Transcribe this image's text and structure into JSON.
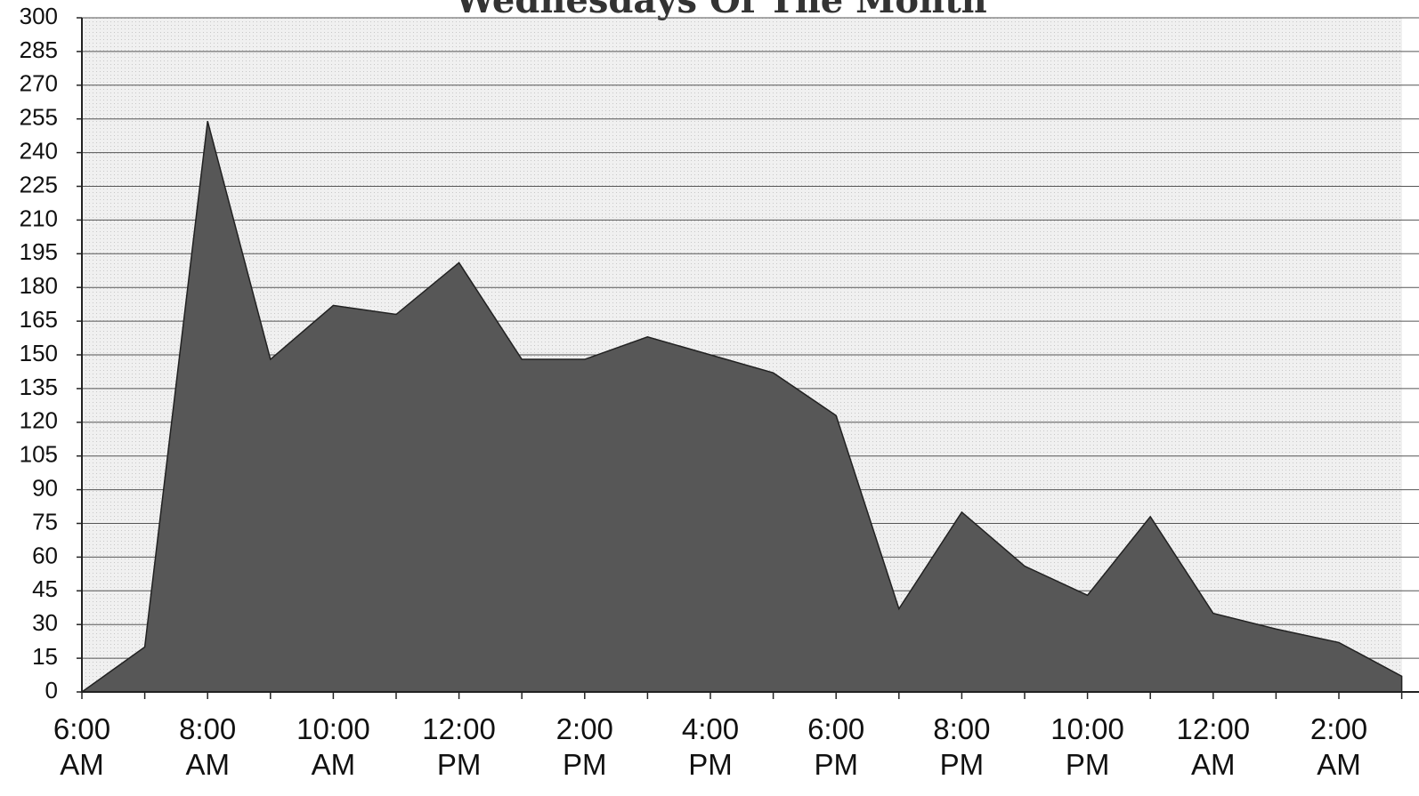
{
  "chart_data": {
    "type": "area",
    "title": "Wednesdays Of The Month",
    "categories": [
      "6:00 AM",
      null,
      "8:00 AM",
      null,
      "10:00 AM",
      null,
      "12:00 PM",
      null,
      "2:00 PM",
      null,
      "4:00 PM",
      null,
      "6:00 PM",
      null,
      "8:00 PM",
      null,
      "10:00 PM",
      null,
      "12:00 AM",
      null,
      "2:00 AM",
      null
    ],
    "values": [
      0,
      20,
      254,
      148,
      172,
      168,
      191,
      148,
      148,
      158,
      150,
      142,
      123,
      37,
      80,
      56,
      43,
      78,
      35,
      28,
      22,
      7
    ],
    "color": "#575757",
    "ylim": [
      0,
      300
    ],
    "yticks": [
      0,
      15,
      30,
      45,
      60,
      75,
      90,
      105,
      120,
      135,
      150,
      165,
      180,
      195,
      210,
      225,
      240,
      255,
      270,
      285,
      300
    ],
    "grid": true
  }
}
